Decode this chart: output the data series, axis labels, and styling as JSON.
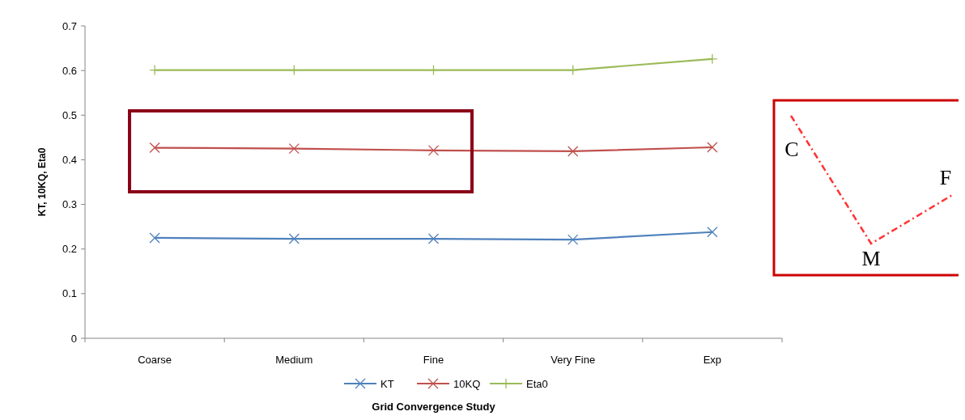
{
  "chart_data": {
    "type": "line",
    "xlabel": "Grid Convergence Study",
    "ylabel": "KT, 10KQ, Eta0",
    "categories": [
      "Coarse",
      "Medium",
      "Fine",
      "Very Fine",
      "Exp"
    ],
    "series": [
      {
        "name": "KT",
        "color": "#4f81bd",
        "marker": "cross",
        "values": [
          0.225,
          0.223,
          0.223,
          0.221,
          0.238
        ]
      },
      {
        "name": "10KQ",
        "color": "#c0504d",
        "marker": "cross",
        "values": [
          0.427,
          0.425,
          0.421,
          0.419,
          0.428
        ]
      },
      {
        "name": "Eta0",
        "color": "#9bbb59",
        "marker": "plus",
        "values": [
          0.601,
          0.601,
          0.601,
          0.601,
          0.626
        ]
      }
    ],
    "ylim": [
      0,
      0.7
    ],
    "yticks": [
      0,
      0.1,
      0.2,
      0.3,
      0.4,
      0.5,
      0.6,
      0.7
    ],
    "grid": false,
    "legend": "bottom",
    "annotations": [
      "C",
      "M",
      "F"
    ]
  }
}
